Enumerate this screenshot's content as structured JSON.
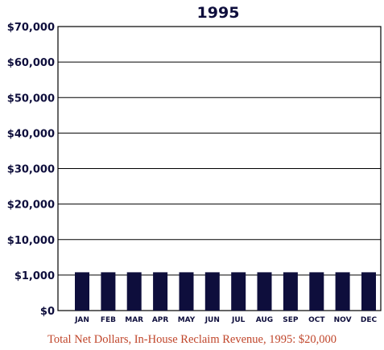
{
  "chart_data": {
    "type": "bar",
    "title": "1995",
    "categories": [
      "JAN",
      "FEB",
      "MAR",
      "APR",
      "MAY",
      "JUN",
      "JUL",
      "AUG",
      "SEP",
      "OCT",
      "NOV",
      "DEC"
    ],
    "series": [
      {
        "values": [
          1700,
          1700,
          1700,
          1700,
          1700,
          1700,
          1700,
          1700,
          1700,
          1700,
          1700,
          1700
        ]
      }
    ],
    "y_ticks": [
      {
        "label": "$0"
      },
      {
        "label": "$1,000"
      },
      {
        "label": "$10,000"
      },
      {
        "label": "$20,000"
      },
      {
        "label": "$30,000"
      },
      {
        "label": "$40,000"
      },
      {
        "label": "$50,000"
      },
      {
        "label": "$60,000"
      },
      {
        "label": "$70,000"
      }
    ],
    "ylim": [
      0,
      70000
    ],
    "y_scale": "piecewise: $0, $1,000, then $10,000 steps to $70,000 at equal spacing",
    "grid": true,
    "bar_color": "#0e0e3c",
    "text_color": "#0e0e3c",
    "caption_color": "#c0452a"
  },
  "caption": "Total Net Dollars, In-House Reclaim Revenue, 1995: $20,000"
}
